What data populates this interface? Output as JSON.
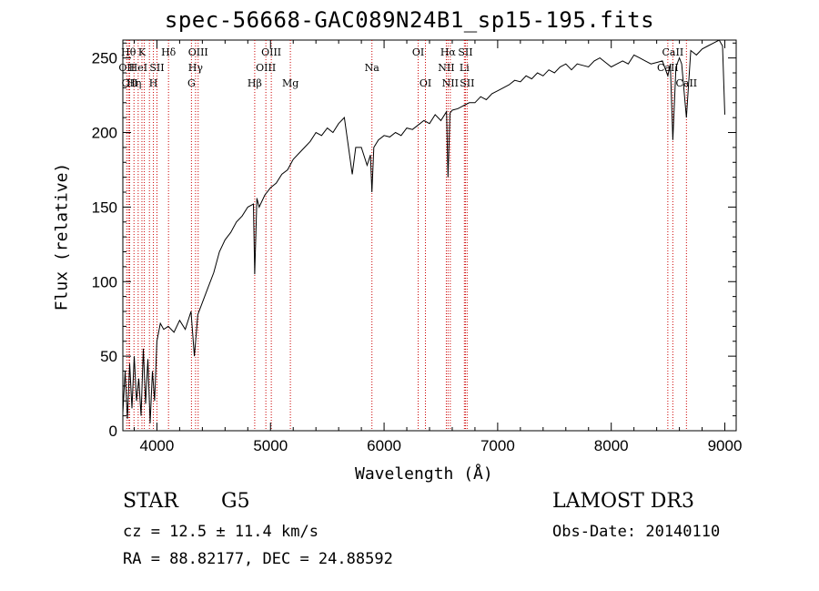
{
  "chart_data": {
    "type": "line",
    "title": "spec-56668-GAC089N24B1_sp15-195.fits",
    "xlabel": "Wavelength (Å)",
    "ylabel": "Flux (relative)",
    "xlim": [
      3700,
      9100
    ],
    "ylim": [
      0,
      262
    ],
    "x_ticks": [
      4000,
      5000,
      6000,
      7000,
      8000,
      9000
    ],
    "y_ticks": [
      0,
      50,
      100,
      150,
      200,
      250
    ],
    "line_color": "#000000",
    "marker_color": "#cc0000",
    "series": [
      {
        "x": [
          3700,
          3720,
          3740,
          3760,
          3780,
          3800,
          3820,
          3840,
          3860,
          3880,
          3900,
          3920,
          3940,
          3960,
          3980,
          4000,
          4030,
          4060,
          4100,
          4150,
          4200,
          4250,
          4300,
          4330,
          4360,
          4400,
          4450,
          4500,
          4550,
          4600,
          4650,
          4700,
          4750,
          4800,
          4850,
          4861,
          4880,
          4900,
          4950,
          5000,
          5050,
          5100,
          5150,
          5200,
          5250,
          5300,
          5350,
          5400,
          5450,
          5500,
          5550,
          5600,
          5650,
          5700,
          5720,
          5750,
          5800,
          5850,
          5880,
          5893,
          5910,
          5950,
          6000,
          6050,
          6100,
          6150,
          6200,
          6250,
          6300,
          6350,
          6400,
          6450,
          6500,
          6550,
          6563,
          6580,
          6600,
          6650,
          6700,
          6750,
          6800,
          6850,
          6900,
          6950,
          7000,
          7050,
          7100,
          7150,
          7200,
          7250,
          7300,
          7350,
          7400,
          7450,
          7500,
          7550,
          7600,
          7650,
          7700,
          7750,
          7800,
          7850,
          7900,
          7950,
          8000,
          8050,
          8100,
          8150,
          8200,
          8250,
          8300,
          8350,
          8400,
          8450,
          8498,
          8520,
          8542,
          8570,
          8600,
          8620,
          8662,
          8700,
          8750,
          8800,
          8850,
          8900,
          8950,
          8980,
          9000
        ],
        "y": [
          12,
          40,
          8,
          45,
          15,
          50,
          20,
          35,
          10,
          55,
          18,
          48,
          5,
          40,
          20,
          60,
          72,
          68,
          70,
          66,
          74,
          68,
          80,
          50,
          78,
          86,
          96,
          106,
          120,
          128,
          133,
          140,
          144,
          150,
          152,
          105,
          156,
          150,
          158,
          163,
          166,
          172,
          175,
          182,
          186,
          190,
          194,
          200,
          198,
          203,
          200,
          206,
          210,
          183,
          172,
          190,
          190,
          178,
          185,
          160,
          190,
          195,
          198,
          197,
          200,
          198,
          203,
          202,
          205,
          208,
          206,
          212,
          208,
          214,
          170,
          213,
          215,
          216,
          218,
          220,
          220,
          224,
          222,
          226,
          228,
          230,
          232,
          235,
          234,
          238,
          236,
          240,
          238,
          242,
          240,
          244,
          246,
          242,
          246,
          245,
          244,
          248,
          250,
          247,
          244,
          246,
          248,
          246,
          252,
          250,
          248,
          246,
          247,
          248,
          238,
          246,
          195,
          244,
          250,
          246,
          210,
          255,
          252,
          256,
          258,
          260,
          262,
          258,
          212
        ]
      }
    ],
    "lines": [
      {
        "x": 3734,
        "label": "OII",
        "row": 1
      },
      {
        "x": 3750,
        "label": "Hθ",
        "row": 0
      },
      {
        "x": 3760,
        "label": "OII",
        "row": 2
      },
      {
        "x": 3798,
        "label": "Hη",
        "row": 2
      },
      {
        "x": 3835,
        "label": "HeI",
        "row": 1
      },
      {
        "x": 3868,
        "label": "K",
        "row": 0
      },
      {
        "x": 3889,
        "label": "",
        "row": 0
      },
      {
        "x": 3934,
        "label": "",
        "row": 0
      },
      {
        "x": 3969,
        "label": "H",
        "row": 2
      },
      {
        "x": 4000,
        "label": "SII",
        "row": 1
      },
      {
        "x": 4102,
        "label": "Hδ",
        "row": 0
      },
      {
        "x": 4304,
        "label": "G",
        "row": 2
      },
      {
        "x": 4340,
        "label": "Hγ",
        "row": 1
      },
      {
        "x": 4363,
        "label": "OIII",
        "row": 0
      },
      {
        "x": 4861,
        "label": "Hβ",
        "row": 2
      },
      {
        "x": 4959,
        "label": "OIII",
        "row": 1
      },
      {
        "x": 5007,
        "label": "OIII",
        "row": 0
      },
      {
        "x": 5175,
        "label": "Mg",
        "row": 2
      },
      {
        "x": 5893,
        "label": "Na",
        "row": 1
      },
      {
        "x": 6300,
        "label": "OI",
        "row": 0
      },
      {
        "x": 6364,
        "label": "OI",
        "row": 2
      },
      {
        "x": 6548,
        "label": "NII",
        "row": 1
      },
      {
        "x": 6563,
        "label": "Hα",
        "row": 0
      },
      {
        "x": 6583,
        "label": "NII",
        "row": 2
      },
      {
        "x": 6707,
        "label": "Li",
        "row": 1
      },
      {
        "x": 6716,
        "label": "SII",
        "row": 0
      },
      {
        "x": 6731,
        "label": "SII",
        "row": 2
      },
      {
        "x": 8498,
        "label": "CaII",
        "row": 1
      },
      {
        "x": 8542,
        "label": "CaII",
        "row": 0
      },
      {
        "x": 8662,
        "label": "CaII",
        "row": 2
      }
    ]
  },
  "info": {
    "class_label": "STAR",
    "subclass": "G5",
    "survey": "LAMOST DR3",
    "cz": "cz = 12.5 ± 11.4 km/s",
    "obs_date": "Obs-Date: 20140110",
    "coords": "RA =  88.82177, DEC =  24.88592"
  }
}
